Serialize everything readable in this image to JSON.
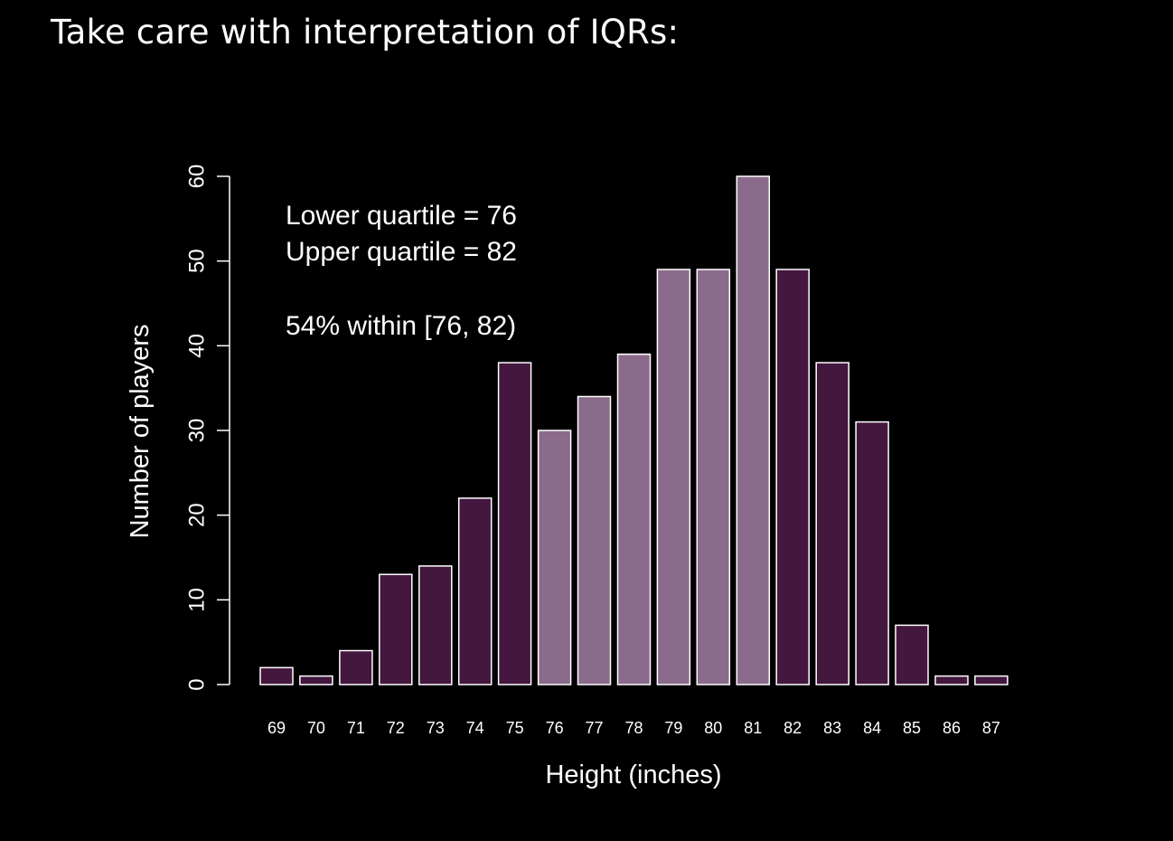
{
  "slide": {
    "title": "Take care with interpretation of IQRs:"
  },
  "chart_data": {
    "type": "bar",
    "categories": [
      "69",
      "70",
      "71",
      "72",
      "73",
      "74",
      "75",
      "76",
      "77",
      "78",
      "79",
      "80",
      "81",
      "82",
      "83",
      "84",
      "85",
      "86",
      "87"
    ],
    "values": [
      2,
      1,
      4,
      13,
      14,
      22,
      38,
      30,
      34,
      39,
      49,
      49,
      60,
      49,
      38,
      31,
      7,
      1,
      1
    ],
    "highlighted_categories": [
      "76",
      "77",
      "78",
      "79",
      "80",
      "81"
    ],
    "xlabel": "Height (inches)",
    "ylabel": "Number of players",
    "ylim": [
      0,
      60
    ],
    "yticks": [
      0,
      10,
      20,
      30,
      40,
      50,
      60
    ],
    "grid": false,
    "annotations": [
      "Lower quartile = 76",
      "Upper quartile = 82",
      "54% within [76, 82)"
    ],
    "colors": {
      "background": "#000000",
      "bar_default": "#44173f",
      "bar_highlight": "#8b6b8b",
      "bar_edge": "#ffffff",
      "axis": "#ffffff",
      "text": "#ffffff"
    }
  }
}
